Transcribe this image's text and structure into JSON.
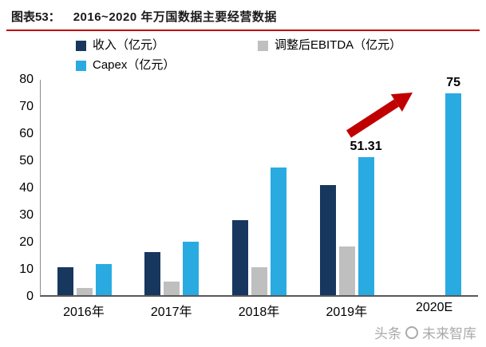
{
  "header": {
    "tag": "图表53：",
    "title": "2016~2020 年万国数据主要经营数据",
    "rule_color": "#C00000"
  },
  "legend": [
    {
      "label": "收入（亿元）",
      "color": "#17375E"
    },
    {
      "label": "调整后EBITDA（亿元）",
      "color": "#BFBFBF"
    },
    {
      "label": "Capex（亿元）",
      "color": "#29ABE2"
    }
  ],
  "chart_data": {
    "type": "bar",
    "categories": [
      "2016年",
      "2017年",
      "2018年",
      "2019年",
      "2020E"
    ],
    "series": [
      {
        "name": "收入（亿元）",
        "color": "#17375E",
        "values": [
          10.5,
          16,
          28,
          41,
          null
        ]
      },
      {
        "name": "调整后EBITDA（亿元）",
        "color": "#BFBFBF",
        "values": [
          2.7,
          5,
          10.5,
          18,
          null
        ]
      },
      {
        "name": "Capex（亿元）",
        "color": "#29ABE2",
        "values": [
          11.5,
          20,
          47.5,
          51.31,
          75
        ]
      }
    ],
    "ylim": [
      0,
      80
    ],
    "yticks": [
      0,
      10,
      20,
      30,
      40,
      50,
      60,
      70,
      80
    ],
    "value_labels": [
      {
        "series": "Capex（亿元）",
        "category": "2019年",
        "text": "51.31"
      },
      {
        "series": "Capex（亿元）",
        "category": "2020E",
        "text": "75"
      }
    ],
    "arrow": {
      "direction": "up-right",
      "color": "#C00000"
    },
    "grid": false,
    "legend_position": "top"
  },
  "watermark": {
    "part1": "头条",
    "part2": "未来智库"
  }
}
